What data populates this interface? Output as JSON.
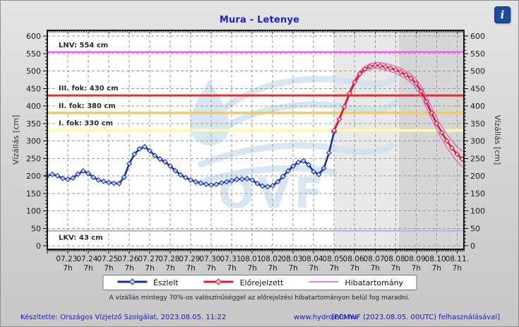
{
  "header": {
    "title": "Mura - Letenye",
    "info_label": "i"
  },
  "legend": {
    "entries": [
      {
        "label": "Észlelt",
        "color": "#17339e",
        "marker_fill": "#b9cde8",
        "marker": true
      },
      {
        "label": "Előrejelzett",
        "color": "#cf2133",
        "marker_fill": "#f3bac3",
        "marker": true
      },
      {
        "label": "Hibatartomány",
        "color": "#d65ad6",
        "marker_fill": null,
        "marker": false
      }
    ]
  },
  "note": "A vízállás mintegy 70%-os valószínűséggel az előrejelzési hibatartományon belül fog maradni.",
  "footer": {
    "made_by": "Készítette: Országos Vízjelző Szolgálat, 2023.08.05. 11:22",
    "website": "www.hydroinfo.hu",
    "model_info": "[ECMWF (2023.08.05. 00UTC) felhasználásával]"
  },
  "chart_data": {
    "type": "line",
    "title": "Mura - Letenye",
    "ylabel": "Vízállás [cm]",
    "ylim": [
      0,
      600
    ],
    "ytick_step": 50,
    "yminor_step": 10,
    "x_axis": {
      "range_hours": [
        0,
        488
      ],
      "first_tick_hour": 24,
      "tick_step_hours": 24,
      "minor_step_hours": 2,
      "tick_dates": [
        "07.23.",
        "07.24.",
        "07.25.",
        "07.26.",
        "07.27.",
        "07.28.",
        "07.29.",
        "07.30.",
        "07.31.",
        "08.01.",
        "08.02.",
        "08.03.",
        "08.04.",
        "08.05.",
        "08.06.",
        "08.07.",
        "08.08.",
        "08.09.",
        "08.10.",
        "08.11."
      ],
      "tick_hour_label": "7h"
    },
    "grid": {
      "color": "#9a9a9a",
      "dash": "4 3"
    },
    "background": {
      "plot": "#ffffff",
      "forecast_zone": {
        "start_hour": 336,
        "color": "#e9e9e9"
      },
      "late_forecast_zone": {
        "start_hour": 412,
        "color": "#d6d6d6"
      }
    },
    "watermark": {
      "text": "OVF",
      "color": "#cfe1f1"
    },
    "reference_lines": [
      {
        "name": "LNV",
        "label": "LNV: 554 cm",
        "value": 554,
        "color": "#e868e8",
        "width": 2.5,
        "label_below": false
      },
      {
        "name": "III. fok",
        "label": "III. fok: 430 cm",
        "value": 430,
        "color": "#e03030",
        "width": 3,
        "label_below": false
      },
      {
        "name": "II. fok",
        "label": "II. fok: 380 cm",
        "value": 380,
        "color": "#ecc87a",
        "width": 3.5,
        "label_below": false
      },
      {
        "name": "I. fok",
        "label": "I. fok: 330 cm",
        "value": 330,
        "color": "#ffff99",
        "width": 3.5,
        "label_below": false
      },
      {
        "name": "LKV",
        "label": "LKV: 43 cm",
        "value": 43,
        "color": "#b8b8e8",
        "width": 2.5,
        "label_below": true
      }
    ],
    "series": [
      {
        "name": "Észlelt",
        "role": "observed",
        "color": "#17339e",
        "marker_fill": "#b9cde8",
        "start_hour": 0,
        "step_hours": 6,
        "values": [
          200,
          204,
          200,
          193,
          190,
          194,
          205,
          214,
          207,
          196,
          188,
          184,
          181,
          179,
          178,
          196,
          235,
          262,
          277,
          283,
          272,
          258,
          248,
          240,
          228,
          215,
          203,
          195,
          188,
          183,
          179,
          176,
          174,
          176,
          180,
          183,
          186,
          190,
          191,
          192,
          188,
          178,
          171,
          169,
          172,
          183,
          198,
          214,
          228,
          239,
          243,
          232,
          212,
          204,
          222,
          266,
          326
        ]
      },
      {
        "name": "Előrejelzett",
        "role": "forecast",
        "color": "#cf2133",
        "marker_fill": "#f3bac3",
        "start_hour": 336,
        "step_hours": 6,
        "values": [
          330,
          362,
          398,
          436,
          468,
          492,
          506,
          513,
          516,
          515,
          512,
          508,
          503,
          497,
          489,
          479,
          464,
          442,
          412,
          380,
          350,
          324,
          300,
          280,
          262,
          248
        ],
        "band": {
          "name": "Hibatartomány",
          "color": "#d65ad6",
          "delta": [
            4,
            5,
            5,
            6,
            6,
            7,
            7,
            8,
            8,
            9,
            9,
            10,
            10,
            11,
            11,
            12,
            13,
            14,
            15,
            16,
            17,
            18,
            19,
            20,
            21,
            22
          ]
        }
      }
    ]
  }
}
